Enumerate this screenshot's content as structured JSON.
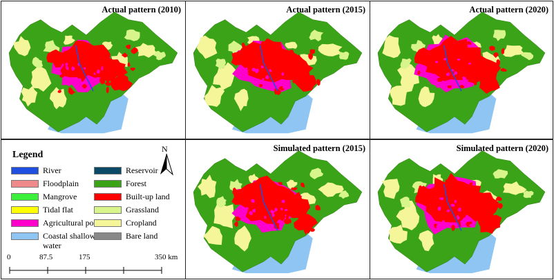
{
  "panels": [
    {
      "title": "Actual pattern (2010)",
      "variant": "actual"
    },
    {
      "title": "Actual pattern (2015)",
      "variant": "actual"
    },
    {
      "title": "Actual pattern (2020)",
      "variant": "actual"
    },
    {
      "title": "Simulated pattern (2015)",
      "variant": "simulated"
    },
    {
      "title": "Simulated pattern (2020)",
      "variant": "simulated"
    }
  ],
  "legend": {
    "title": "Legend",
    "items": [
      {
        "label": "River",
        "color": "#1f4fe0"
      },
      {
        "label": "Reservoir",
        "color": "#0a4a66"
      },
      {
        "label": "Floodplain",
        "color": "#f08a8a"
      },
      {
        "label": "Forest",
        "color": "#3aa318"
      },
      {
        "label": "Mangrove",
        "color": "#3bf03b"
      },
      {
        "label": "Built-up land",
        "color": "#ff0000"
      },
      {
        "label": "Tidal flat",
        "color": "#ffff00"
      },
      {
        "label": "Grassland",
        "color": "#d7f58a"
      },
      {
        "label": "Agricultural pond",
        "color": "#ff00cc"
      },
      {
        "label": "Cropland",
        "color": "#f5f59a"
      },
      {
        "label": "Coastal shallow water",
        "color": "#8ec5f2"
      },
      {
        "label": "Bare land",
        "color": "#888888"
      }
    ]
  },
  "north_arrow": {
    "label": "N"
  },
  "scale_bar": {
    "ticks": [
      "0",
      "87.5",
      "175",
      "350 km"
    ]
  }
}
